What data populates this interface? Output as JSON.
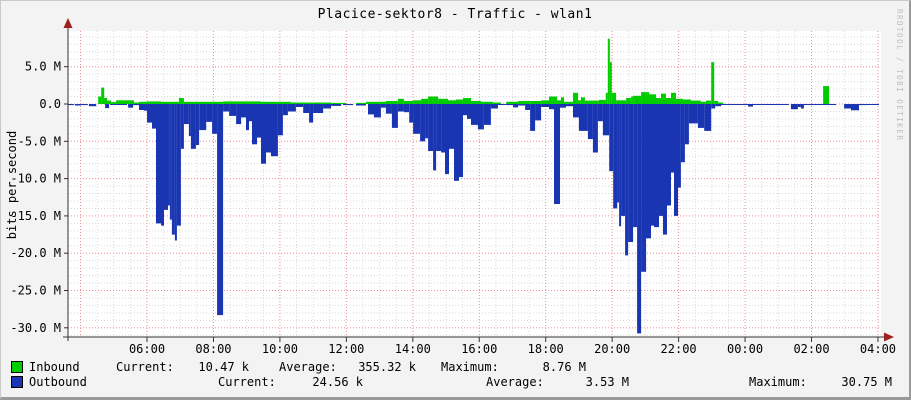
{
  "title": "Placice-sektor8 - Traffic - wlan1",
  "watermark": "RRDTOOL / TOBI OETIKER",
  "colors": {
    "inbound": "#00cc00",
    "outbound": "#1a35b2",
    "grid_major": "#f08f8f",
    "grid_minor": "#d9d9d9",
    "axis": "#333333",
    "arrow": "#a02020",
    "canvas_bg": "#f3f3f3",
    "plot_bg": "#ffffff"
  },
  "chart_data": {
    "type": "area",
    "title": "Placice-sektor8 - Traffic - wlan1",
    "ylabel": "bits per second",
    "value_unit_note": "values in M = 1e6 bits/second",
    "ylim": [
      -31.2,
      9.8
    ],
    "grid": "dotted; red major (5M / 2h), gray minor (1M / 30min)",
    "legend_position": "bottom-left",
    "y_major_ticks": [
      {
        "value": 5,
        "label": "5.0 M"
      },
      {
        "value": 0,
        "label": "0.0"
      },
      {
        "value": -5,
        "label": "-5.0 M"
      },
      {
        "value": -10,
        "label": "-10.0 M"
      },
      {
        "value": -15,
        "label": "-15.0 M"
      },
      {
        "value": -20,
        "label": "-20.0 M"
      },
      {
        "value": -25,
        "label": "-25.0 M"
      },
      {
        "value": -30,
        "label": "-30.0 M"
      }
    ],
    "x_ticks": [
      {
        "hour": 6,
        "label": "06:00"
      },
      {
        "hour": 8,
        "label": "08:00"
      },
      {
        "hour": 10,
        "label": "10:00"
      },
      {
        "hour": 12,
        "label": "12:00"
      },
      {
        "hour": 14,
        "label": "14:00"
      },
      {
        "hour": 16,
        "label": "16:00"
      },
      {
        "hour": 18,
        "label": "18:00"
      },
      {
        "hour": 20,
        "label": "20:00"
      },
      {
        "hour": 22,
        "label": "22:00"
      },
      {
        "hour": 24,
        "label": "00:00"
      },
      {
        "hour": 26,
        "label": "02:00"
      },
      {
        "hour": 28,
        "label": "04:00"
      }
    ],
    "x_range_hours": [
      3.62,
      28.09
    ],
    "series": [
      {
        "name": "Inbound",
        "color": "#00cc00",
        "segments_h": [
          [
            4.53,
            4.62,
            1.0
          ],
          [
            4.62,
            4.71,
            2.2
          ],
          [
            4.71,
            4.8,
            0.8
          ],
          [
            4.8,
            4.92,
            0.45
          ],
          [
            4.92,
            5.07,
            0.25
          ],
          [
            5.07,
            5.61,
            0.5
          ],
          [
            5.61,
            5.76,
            0.2
          ],
          [
            5.76,
            6.0,
            0.3
          ],
          [
            6.0,
            6.42,
            0.35
          ],
          [
            6.42,
            6.96,
            0.3
          ],
          [
            6.96,
            7.11,
            0.8
          ],
          [
            7.11,
            8.29,
            0.3
          ],
          [
            8.29,
            9.43,
            0.35
          ],
          [
            9.43,
            10.33,
            0.3
          ],
          [
            10.33,
            11.54,
            0.2
          ],
          [
            11.54,
            11.99,
            0.15
          ],
          [
            12.29,
            12.59,
            0.15
          ],
          [
            12.59,
            13.19,
            0.3
          ],
          [
            13.19,
            13.55,
            0.4
          ],
          [
            13.55,
            13.73,
            0.7
          ],
          [
            13.73,
            14.01,
            0.4
          ],
          [
            14.01,
            14.25,
            0.5
          ],
          [
            14.25,
            14.46,
            0.7
          ],
          [
            14.46,
            14.76,
            1.0
          ],
          [
            14.76,
            15.06,
            0.7
          ],
          [
            15.06,
            15.3,
            0.5
          ],
          [
            15.3,
            15.51,
            0.6
          ],
          [
            15.51,
            15.75,
            0.8
          ],
          [
            15.75,
            16.05,
            0.4
          ],
          [
            16.05,
            16.41,
            0.3
          ],
          [
            16.41,
            16.65,
            0.2
          ],
          [
            16.81,
            17.17,
            0.3
          ],
          [
            17.17,
            17.53,
            0.4
          ],
          [
            17.53,
            17.86,
            0.4
          ],
          [
            17.86,
            18.1,
            0.5
          ],
          [
            18.1,
            18.34,
            1.0
          ],
          [
            18.34,
            18.46,
            0.5
          ],
          [
            18.46,
            18.55,
            0.9
          ],
          [
            18.55,
            18.82,
            0.3
          ],
          [
            18.82,
            18.97,
            1.5
          ],
          [
            18.97,
            19.06,
            0.5
          ],
          [
            19.06,
            19.18,
            0.9
          ],
          [
            19.18,
            19.6,
            0.45
          ],
          [
            19.6,
            19.81,
            0.55
          ],
          [
            19.81,
            19.87,
            1.5
          ],
          [
            19.87,
            19.93,
            8.76
          ],
          [
            19.93,
            19.99,
            5.6
          ],
          [
            19.99,
            20.12,
            1.5
          ],
          [
            20.12,
            20.42,
            0.5
          ],
          [
            20.42,
            20.57,
            0.8
          ],
          [
            20.57,
            20.63,
            1.0
          ],
          [
            20.63,
            20.87,
            1.1
          ],
          [
            20.87,
            21.11,
            1.6
          ],
          [
            21.11,
            21.32,
            1.3
          ],
          [
            21.32,
            21.47,
            0.8
          ],
          [
            21.47,
            21.62,
            1.4
          ],
          [
            21.62,
            21.77,
            0.8
          ],
          [
            21.77,
            21.92,
            1.5
          ],
          [
            21.92,
            22.13,
            0.7
          ],
          [
            22.13,
            22.37,
            0.6
          ],
          [
            22.37,
            22.67,
            0.45
          ],
          [
            22.67,
            22.82,
            0.3
          ],
          [
            22.82,
            22.98,
            0.45
          ],
          [
            22.98,
            23.07,
            5.6
          ],
          [
            23.07,
            23.19,
            0.4
          ],
          [
            23.19,
            23.34,
            0.2
          ],
          [
            26.35,
            26.53,
            2.4
          ]
        ]
      },
      {
        "name": "Outbound",
        "color": "#1a35b2",
        "segments_h": [
          [
            3.62,
            3.8,
            -0.15
          ],
          [
            3.83,
            4.01,
            -0.2
          ],
          [
            4.01,
            4.22,
            -0.15
          ],
          [
            4.25,
            4.47,
            -0.3
          ],
          [
            4.74,
            4.86,
            -0.55
          ],
          [
            4.89,
            5.4,
            -0.12
          ],
          [
            5.43,
            5.58,
            -0.5
          ],
          [
            5.58,
            5.76,
            -0.15
          ],
          [
            5.76,
            5.91,
            -0.8
          ],
          [
            5.91,
            6.0,
            -0.9
          ],
          [
            6.0,
            6.15,
            -2.5
          ],
          [
            6.15,
            6.27,
            -3.3
          ],
          [
            6.27,
            6.42,
            -16.0
          ],
          [
            6.42,
            6.51,
            -16.3
          ],
          [
            6.51,
            6.63,
            -14.2
          ],
          [
            6.63,
            6.69,
            -13.6
          ],
          [
            6.69,
            6.75,
            -15.5
          ],
          [
            6.75,
            6.84,
            -17.5
          ],
          [
            6.84,
            6.9,
            -18.3
          ],
          [
            6.9,
            7.02,
            -16.3
          ],
          [
            7.02,
            7.11,
            -6.0
          ],
          [
            7.11,
            7.26,
            -2.7
          ],
          [
            7.26,
            7.32,
            -4.3
          ],
          [
            7.32,
            7.47,
            -6.0
          ],
          [
            7.47,
            7.57,
            -5.5
          ],
          [
            7.57,
            7.78,
            -3.5
          ],
          [
            7.78,
            7.96,
            -2.4
          ],
          [
            7.96,
            8.11,
            -4.0
          ],
          [
            8.11,
            8.29,
            -28.3
          ],
          [
            8.29,
            8.47,
            -1.0
          ],
          [
            8.47,
            8.68,
            -1.6
          ],
          [
            8.68,
            8.83,
            -2.7
          ],
          [
            8.83,
            8.98,
            -1.8
          ],
          [
            8.98,
            9.07,
            -3.5
          ],
          [
            9.07,
            9.16,
            -2.3
          ],
          [
            9.16,
            9.31,
            -5.4
          ],
          [
            9.31,
            9.43,
            -4.5
          ],
          [
            9.43,
            9.58,
            -8.0
          ],
          [
            9.58,
            9.73,
            -6.5
          ],
          [
            9.73,
            9.94,
            -7.0
          ],
          [
            9.94,
            10.09,
            -4.2
          ],
          [
            10.09,
            10.24,
            -1.5
          ],
          [
            10.24,
            10.48,
            -1.0
          ],
          [
            10.48,
            10.7,
            -0.4
          ],
          [
            10.7,
            10.88,
            -1.2
          ],
          [
            10.88,
            11.0,
            -2.5
          ],
          [
            11.0,
            11.3,
            -1.2
          ],
          [
            11.3,
            11.54,
            -0.6
          ],
          [
            11.54,
            11.84,
            -0.25
          ],
          [
            11.9,
            12.2,
            -0.15
          ],
          [
            12.29,
            12.59,
            -0.2
          ],
          [
            12.65,
            12.83,
            -1.4
          ],
          [
            12.83,
            13.04,
            -1.8
          ],
          [
            13.04,
            13.19,
            -0.5
          ],
          [
            13.19,
            13.37,
            -1.3
          ],
          [
            13.37,
            13.55,
            -3.2
          ],
          [
            13.55,
            13.73,
            -1.0
          ],
          [
            13.73,
            13.89,
            -1.1
          ],
          [
            13.89,
            14.01,
            -2.5
          ],
          [
            14.01,
            14.22,
            -4.0
          ],
          [
            14.22,
            14.37,
            -5.0
          ],
          [
            14.37,
            14.46,
            -4.6
          ],
          [
            14.46,
            14.61,
            -6.3
          ],
          [
            14.61,
            14.7,
            -8.9
          ],
          [
            14.7,
            14.85,
            -6.3
          ],
          [
            14.85,
            14.97,
            -6.5
          ],
          [
            14.97,
            15.09,
            -9.4
          ],
          [
            15.09,
            15.24,
            -6.0
          ],
          [
            15.24,
            15.39,
            -10.3
          ],
          [
            15.39,
            15.51,
            -9.8
          ],
          [
            15.51,
            15.63,
            -1.5
          ],
          [
            15.63,
            15.75,
            -2.0
          ],
          [
            15.75,
            15.96,
            -2.8
          ],
          [
            15.96,
            16.14,
            -3.4
          ],
          [
            16.14,
            16.35,
            -2.8
          ],
          [
            16.35,
            16.56,
            -0.6
          ],
          [
            16.56,
            16.81,
            -0.1
          ],
          [
            16.81,
            17.02,
            -0.15
          ],
          [
            17.02,
            17.17,
            -0.45
          ],
          [
            17.17,
            17.38,
            -0.2
          ],
          [
            17.38,
            17.53,
            -0.8
          ],
          [
            17.53,
            17.68,
            -3.6
          ],
          [
            17.68,
            17.86,
            -2.2
          ],
          [
            17.86,
            18.1,
            -0.4
          ],
          [
            18.1,
            18.25,
            -0.7
          ],
          [
            18.25,
            18.43,
            -13.4
          ],
          [
            18.43,
            18.61,
            -0.5
          ],
          [
            18.61,
            18.82,
            -0.3
          ],
          [
            18.82,
            19.0,
            -1.8
          ],
          [
            19.0,
            19.27,
            -3.6
          ],
          [
            19.27,
            19.42,
            -4.7
          ],
          [
            19.42,
            19.57,
            -6.5
          ],
          [
            19.57,
            19.72,
            -2.3
          ],
          [
            19.72,
            19.91,
            -4.2
          ],
          [
            19.91,
            20.03,
            -9.0
          ],
          [
            20.03,
            20.15,
            -14.0
          ],
          [
            20.15,
            20.21,
            -13.2
          ],
          [
            20.21,
            20.27,
            -16.4
          ],
          [
            20.27,
            20.39,
            -15.0
          ],
          [
            20.39,
            20.48,
            -20.3
          ],
          [
            20.48,
            20.63,
            -18.5
          ],
          [
            20.63,
            20.75,
            -16.5
          ],
          [
            20.75,
            20.87,
            -30.75
          ],
          [
            20.87,
            21.02,
            -22.5
          ],
          [
            21.02,
            21.17,
            -18.0
          ],
          [
            21.17,
            21.26,
            -16.3
          ],
          [
            21.26,
            21.41,
            -16.5
          ],
          [
            21.41,
            21.53,
            -15.0
          ],
          [
            21.53,
            21.65,
            -17.5
          ],
          [
            21.65,
            21.77,
            -13.6
          ],
          [
            21.77,
            21.86,
            -9.2
          ],
          [
            21.86,
            21.98,
            -15.0
          ],
          [
            21.98,
            22.07,
            -11.2
          ],
          [
            22.07,
            22.19,
            -7.8
          ],
          [
            22.19,
            22.31,
            -5.4
          ],
          [
            22.31,
            22.58,
            -2.6
          ],
          [
            22.58,
            22.77,
            -3.2
          ],
          [
            22.77,
            22.98,
            -3.6
          ],
          [
            22.98,
            23.1,
            -0.6
          ],
          [
            23.1,
            23.28,
            -0.3
          ],
          [
            23.28,
            24.09,
            -0.1
          ],
          [
            24.09,
            24.24,
            -0.35
          ],
          [
            24.24,
            25.32,
            -0.1
          ],
          [
            25.38,
            25.59,
            -0.7
          ],
          [
            25.59,
            25.68,
            -0.4
          ],
          [
            25.68,
            25.77,
            -0.6
          ],
          [
            25.77,
            26.29,
            -0.1
          ],
          [
            26.29,
            26.74,
            -0.12
          ],
          [
            26.98,
            27.19,
            -0.6
          ],
          [
            27.19,
            27.43,
            -0.85
          ],
          [
            27.43,
            27.7,
            -0.15
          ],
          [
            27.7,
            28.03,
            -0.1
          ]
        ]
      }
    ]
  },
  "legend": {
    "rows": [
      {
        "name": "Inbound",
        "swatch_color": "#00cc00",
        "stats": [
          {
            "label": "Current:",
            "value": "10.47 k"
          },
          {
            "label": "Average:",
            "value": "355.32 k"
          },
          {
            "label": "Maximum:",
            "value": "8.76 M"
          }
        ]
      },
      {
        "name": "Outbound",
        "swatch_color": "#1a35b2",
        "stats": [
          {
            "label": "Current:",
            "value": "24.56 k"
          },
          {
            "label": "Average:",
            "value": "3.53 M"
          },
          {
            "label": "Maximum:",
            "value": "30.75 M"
          }
        ]
      }
    ]
  }
}
